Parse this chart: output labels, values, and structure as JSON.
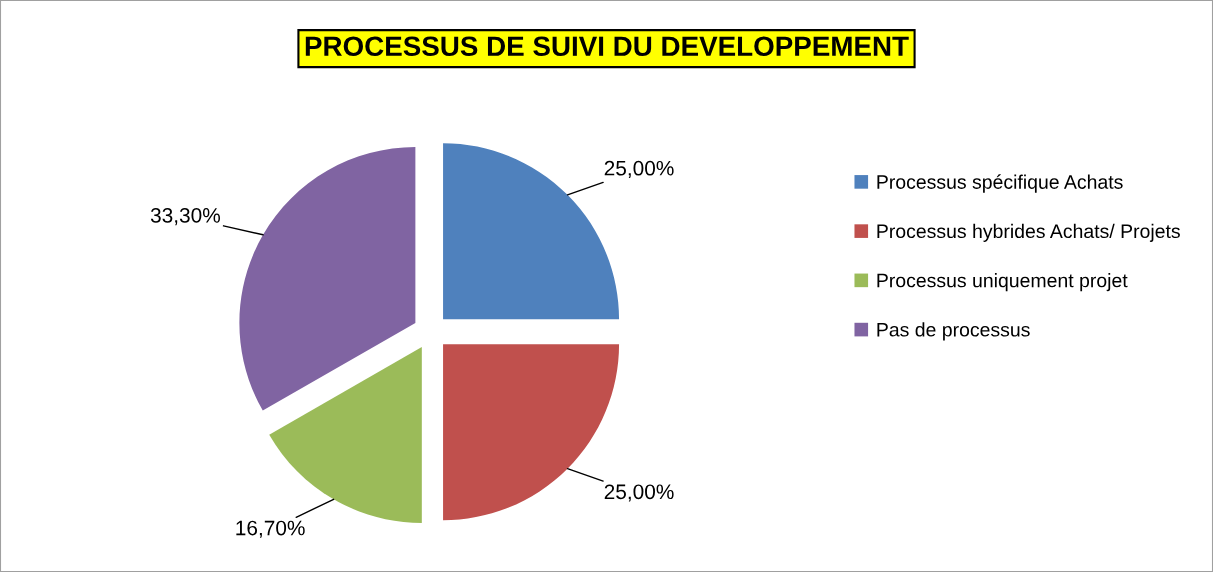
{
  "chart_data": {
    "type": "pie",
    "title": "PROCESSUS DE SUIVI DU DEVELOPPEMENT",
    "categories": [
      "Processus spécifique Achats",
      "Processus hybrides Achats/ Projets",
      "Processus uniquement projet",
      "Pas de processus"
    ],
    "values": [
      25.0,
      25.0,
      16.7,
      33.3
    ],
    "value_labels": [
      "25,00%",
      "25,00%",
      "16,70%",
      "33,30%"
    ],
    "colors": [
      "#4f81bd",
      "#c0504d",
      "#9bbb59",
      "#8064a2"
    ],
    "legend": "right"
  }
}
